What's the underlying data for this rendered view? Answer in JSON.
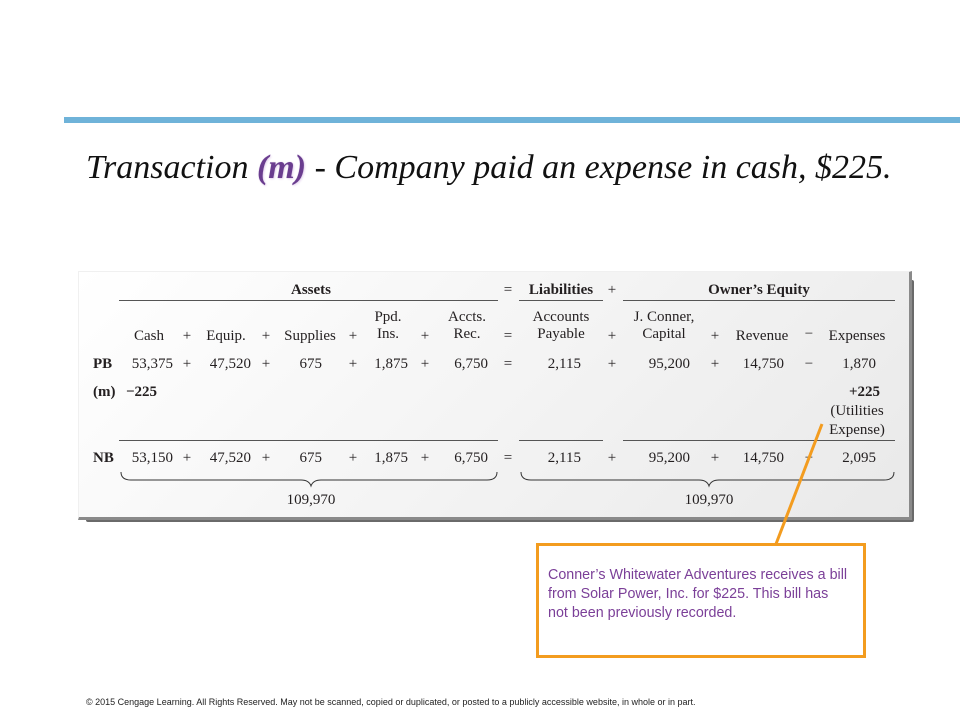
{
  "title": {
    "prefix": "Transaction ",
    "highlight": "(m)",
    "suffix": " - Company paid an expense in cash, $225."
  },
  "table": {
    "groups": {
      "assets": "Assets",
      "eq1": "=",
      "liabilities": "Liabilities",
      "plus": "+",
      "owners_equity": "Owner’s Equity"
    },
    "headers": {
      "cash": "Cash",
      "op1": "+",
      "equip": "Equip.",
      "op2": "+",
      "supplies": "Supplies",
      "op3": "+",
      "ppd_1": "Ppd.",
      "ppd_2": "Ins.",
      "op4": "+",
      "accts_1": "Accts.",
      "accts_2": "Rec.",
      "eq": "=",
      "ap_1": "Accounts",
      "ap_2": "Payable",
      "op5": "+",
      "cap_1": "J. Conner,",
      "cap_2": "Capital",
      "op6": "+",
      "revenue": "Revenue",
      "op7": "−",
      "expenses": "Expenses"
    },
    "rows": {
      "pb": {
        "label": "PB",
        "cash": "53,375",
        "op1": "+",
        "equip": "47,520",
        "op2": "+",
        "supplies": "675",
        "op3": "+",
        "ppd": "1,875",
        "op4": "+",
        "accts": "6,750",
        "eq": "=",
        "ap": "2,115",
        "op5": "+",
        "capital": "95,200",
        "op6": "+",
        "revenue": "14,750",
        "op7": "−",
        "expenses": "1,870"
      },
      "m": {
        "label": "(m)",
        "cash": "−225",
        "expenses": "+225",
        "note_1": "(Utilities",
        "note_2": "Expense)"
      },
      "nb": {
        "label": "NB",
        "cash": "53,150",
        "op1": "+",
        "equip": "47,520",
        "op2": "+",
        "supplies": "675",
        "op3": "+",
        "ppd": "1,875",
        "op4": "+",
        "accts": "6,750",
        "eq": "=",
        "ap": "2,115",
        "op5": "+",
        "capital": "95,200",
        "op6": "+",
        "revenue": "14,750",
        "op7": "−",
        "expenses": "2,095"
      }
    },
    "totals": {
      "assets": "109,970",
      "liab_equity": "109,970"
    }
  },
  "callout": {
    "text": "Conner’s Whitewater Adventures receives a bill from Solar Power, Inc. for $225. This bill has not been previously recorded."
  },
  "footer": "© 2015 Cengage Learning. All Rights Reserved. May not be scanned, copied or duplicated, or posted to a publicly accessible website, in whole or in part.",
  "colors": {
    "accent_rule": "#6fb3d9",
    "highlight": "#6a3d8f",
    "callout_border": "#f39c1f",
    "callout_text": "#7b3f98"
  }
}
